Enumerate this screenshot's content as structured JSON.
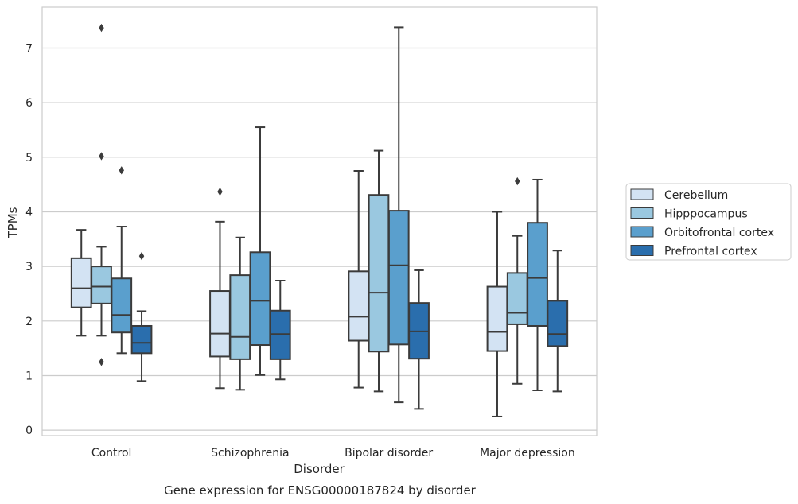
{
  "caption": "Gene expression for ENSG00000187824 by disorder",
  "chart_data": {
    "type": "box",
    "xlabel": "Disorder",
    "ylabel": "TPMs",
    "ylim": [
      -0.1,
      7.75
    ],
    "yticks": [
      0,
      1,
      2,
      3,
      4,
      5,
      6,
      7
    ],
    "grid": true,
    "legend_position": "right",
    "categories": [
      "Control",
      "Schizophrenia",
      "Bipolar disorder",
      "Major depression"
    ],
    "series": [
      {
        "name": "Cerebellum",
        "color": "#d3e3f3",
        "boxes": [
          {
            "whislo": 1.73,
            "q1": 2.25,
            "med": 2.6,
            "q3": 3.15,
            "whishi": 3.67,
            "fliers": []
          },
          {
            "whislo": 0.77,
            "q1": 1.35,
            "med": 1.77,
            "q3": 2.55,
            "whishi": 3.82,
            "fliers": [
              4.37
            ]
          },
          {
            "whislo": 0.78,
            "q1": 1.64,
            "med": 2.08,
            "q3": 2.91,
            "whishi": 4.75,
            "fliers": []
          },
          {
            "whislo": 0.25,
            "q1": 1.45,
            "med": 1.8,
            "q3": 2.63,
            "whishi": 4.0,
            "fliers": []
          }
        ]
      },
      {
        "name": "Hipppocampus",
        "color": "#9ac8e0",
        "boxes": [
          {
            "whislo": 1.73,
            "q1": 2.32,
            "med": 2.63,
            "q3": 3.0,
            "whishi": 3.36,
            "fliers": [
              1.25,
              5.02,
              7.37
            ]
          },
          {
            "whislo": 0.74,
            "q1": 1.3,
            "med": 1.71,
            "q3": 2.84,
            "whishi": 3.53,
            "fliers": []
          },
          {
            "whislo": 0.71,
            "q1": 1.44,
            "med": 2.52,
            "q3": 4.31,
            "whishi": 5.12,
            "fliers": []
          },
          {
            "whislo": 0.85,
            "q1": 1.94,
            "med": 2.15,
            "q3": 2.88,
            "whishi": 3.56,
            "fliers": [
              4.56
            ]
          }
        ]
      },
      {
        "name": "Orbitofrontal cortex",
        "color": "#5a9fcd",
        "boxes": [
          {
            "whislo": 1.41,
            "q1": 1.79,
            "med": 2.11,
            "q3": 2.78,
            "whishi": 3.73,
            "fliers": [
              4.76
            ]
          },
          {
            "whislo": 1.01,
            "q1": 1.56,
            "med": 2.37,
            "q3": 3.26,
            "whishi": 5.55,
            "fliers": []
          },
          {
            "whislo": 0.51,
            "q1": 1.57,
            "med": 3.02,
            "q3": 4.02,
            "whishi": 7.38,
            "fliers": []
          },
          {
            "whislo": 0.73,
            "q1": 1.91,
            "med": 2.79,
            "q3": 3.8,
            "whishi": 4.59,
            "fliers": []
          }
        ]
      },
      {
        "name": "Prefrontal cortex",
        "color": "#2a6ead",
        "boxes": [
          {
            "whislo": 0.9,
            "q1": 1.41,
            "med": 1.6,
            "q3": 1.91,
            "whishi": 2.18,
            "fliers": [
              3.19
            ]
          },
          {
            "whislo": 0.93,
            "q1": 1.3,
            "med": 1.76,
            "q3": 2.19,
            "whishi": 2.74,
            "fliers": []
          },
          {
            "whislo": 0.39,
            "q1": 1.31,
            "med": 1.81,
            "q3": 2.33,
            "whishi": 2.93,
            "fliers": []
          },
          {
            "whislo": 0.71,
            "q1": 1.54,
            "med": 1.76,
            "q3": 2.37,
            "whishi": 3.29,
            "fliers": []
          }
        ]
      }
    ]
  }
}
